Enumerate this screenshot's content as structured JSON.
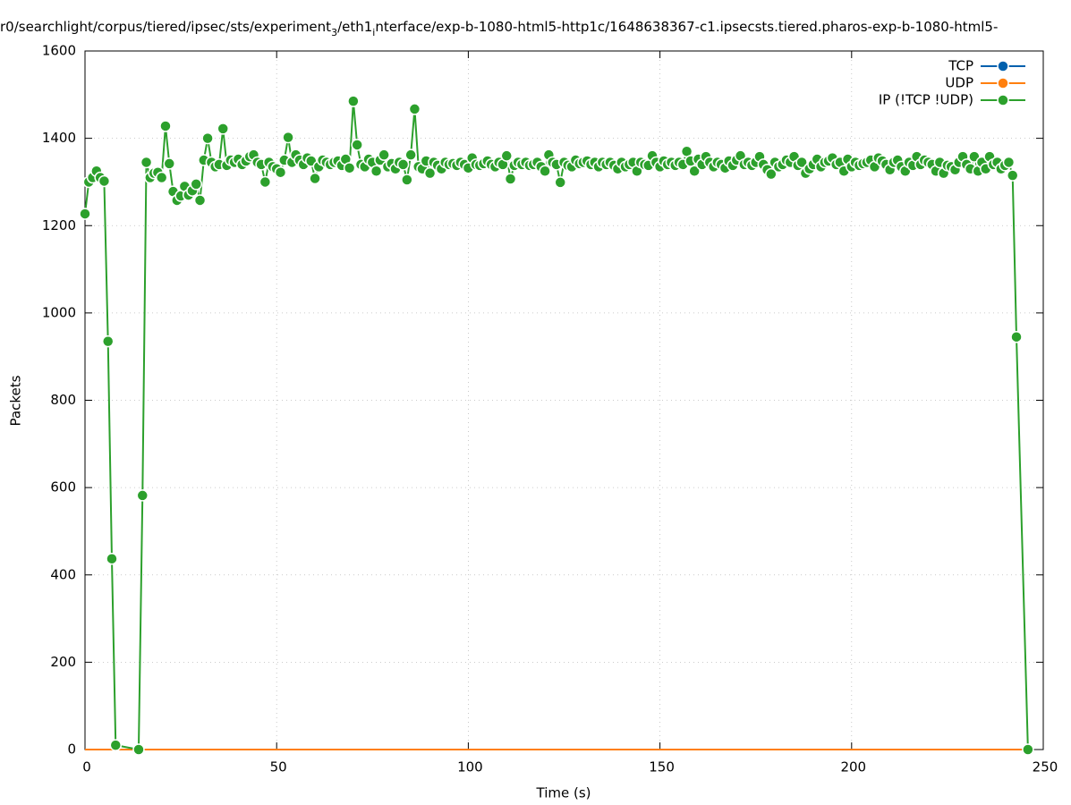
{
  "chart_data": {
    "type": "line",
    "title_segments": [
      "r0/searchlight/corpus/tiered/ipsec/sts/experiment",
      "3",
      "/eth1",
      "i",
      "nterface/exp-b-1080-html5-http1c/1648638367-c1.ipsecsts.tiered.pharos-exp-b-1080-html5-"
    ],
    "xlabel": "Time (s)",
    "ylabel": "Packets",
    "xlim": [
      0,
      250
    ],
    "xticks": [
      0,
      50,
      100,
      150,
      200,
      250
    ],
    "ylim": [
      0,
      1600
    ],
    "yticks": [
      0,
      200,
      400,
      600,
      800,
      1000,
      1200,
      1400,
      1600
    ],
    "grid": true,
    "legend": "top-right",
    "x": [
      0,
      1,
      2,
      3,
      4,
      5,
      6,
      7,
      8,
      14,
      15,
      16,
      17,
      18,
      19,
      20,
      21,
      22,
      23,
      24,
      25,
      26,
      27,
      28,
      29,
      30,
      31,
      32,
      33,
      34,
      35,
      36,
      37,
      38,
      39,
      40,
      41,
      42,
      43,
      44,
      45,
      46,
      47,
      48,
      49,
      50,
      51,
      52,
      53,
      54,
      55,
      56,
      57,
      58,
      59,
      60,
      61,
      62,
      63,
      64,
      65,
      66,
      67,
      68,
      69,
      70,
      71,
      72,
      73,
      74,
      75,
      76,
      77,
      78,
      79,
      80,
      81,
      82,
      83,
      84,
      85,
      86,
      87,
      88,
      89,
      90,
      91,
      92,
      93,
      94,
      95,
      96,
      97,
      98,
      99,
      100,
      101,
      102,
      103,
      104,
      105,
      106,
      107,
      108,
      109,
      110,
      111,
      112,
      113,
      114,
      115,
      116,
      117,
      118,
      119,
      120,
      121,
      122,
      123,
      124,
      125,
      126,
      127,
      128,
      129,
      130,
      131,
      132,
      133,
      134,
      135,
      136,
      137,
      138,
      139,
      140,
      141,
      142,
      143,
      144,
      145,
      146,
      147,
      148,
      149,
      150,
      151,
      152,
      153,
      154,
      155,
      156,
      157,
      158,
      159,
      160,
      161,
      162,
      163,
      164,
      165,
      166,
      167,
      168,
      169,
      170,
      171,
      172,
      173,
      174,
      175,
      176,
      177,
      178,
      179,
      180,
      181,
      182,
      183,
      184,
      185,
      186,
      187,
      188,
      189,
      190,
      191,
      192,
      193,
      194,
      195,
      196,
      197,
      198,
      199,
      200,
      201,
      202,
      203,
      204,
      205,
      206,
      207,
      208,
      209,
      210,
      211,
      212,
      213,
      214,
      215,
      216,
      217,
      218,
      219,
      220,
      221,
      222,
      223,
      224,
      225,
      226,
      227,
      228,
      229,
      230,
      231,
      232,
      233,
      234,
      235,
      236,
      237,
      238,
      239,
      240,
      241,
      242,
      243,
      246
    ],
    "series": [
      {
        "name": "TCP",
        "color": "#0060ad",
        "points": false,
        "values": [
          0,
          0,
          0,
          0,
          0,
          0,
          0,
          0,
          0,
          0,
          0,
          0,
          0,
          0,
          0,
          0,
          0,
          0,
          0,
          0,
          0,
          0,
          0,
          0,
          0,
          0,
          0,
          0,
          0,
          0,
          0,
          0,
          0,
          0,
          0,
          0,
          0,
          0,
          0,
          0,
          0,
          0,
          0,
          0,
          0,
          0,
          0,
          0,
          0,
          0,
          0,
          0,
          0,
          0,
          0,
          0,
          0,
          0,
          0,
          0,
          0,
          0,
          0,
          0,
          0,
          0,
          0,
          0,
          0,
          0,
          0,
          0,
          0,
          0,
          0,
          0,
          0,
          0,
          0,
          0,
          0,
          0,
          0,
          0,
          0,
          0,
          0,
          0,
          0,
          0,
          0,
          0,
          0,
          0,
          0,
          0,
          0,
          0,
          0,
          0,
          0,
          0,
          0,
          0,
          0,
          0,
          0,
          0,
          0,
          0,
          0,
          0,
          0,
          0,
          0,
          0,
          0,
          0,
          0,
          0,
          0,
          0,
          0,
          0,
          0,
          0,
          0,
          0,
          0,
          0,
          0,
          0,
          0,
          0,
          0,
          0,
          0,
          0,
          0,
          0,
          0,
          0,
          0,
          0,
          0,
          0,
          0,
          0,
          0,
          0,
          0,
          0,
          0,
          0,
          0,
          0,
          0,
          0,
          0,
          0,
          0,
          0,
          0,
          0,
          0,
          0,
          0,
          0,
          0,
          0,
          0,
          0,
          0,
          0,
          0,
          0,
          0,
          0,
          0,
          0,
          0,
          0,
          0,
          0,
          0,
          0,
          0,
          0,
          0,
          0,
          0,
          0,
          0,
          0,
          0,
          0,
          0,
          0,
          0,
          0,
          0,
          0,
          0,
          0,
          0,
          0,
          0,
          0,
          0,
          0,
          0,
          0,
          0,
          0,
          0,
          0,
          0,
          0,
          0,
          0,
          0,
          0,
          0,
          0,
          0,
          0,
          0,
          0,
          0,
          0,
          0,
          0,
          0,
          0,
          0,
          0,
          0,
          0,
          0,
          0
        ]
      },
      {
        "name": "UDP",
        "color": "#ff7f0e",
        "points": false,
        "values": [
          0,
          0,
          0,
          0,
          0,
          0,
          0,
          0,
          0,
          0,
          0,
          0,
          0,
          0,
          0,
          0,
          0,
          0,
          0,
          0,
          0,
          0,
          0,
          0,
          0,
          0,
          0,
          0,
          0,
          0,
          0,
          0,
          0,
          0,
          0,
          0,
          0,
          0,
          0,
          0,
          0,
          0,
          0,
          0,
          0,
          0,
          0,
          0,
          0,
          0,
          0,
          0,
          0,
          0,
          0,
          0,
          0,
          0,
          0,
          0,
          0,
          0,
          0,
          0,
          0,
          0,
          0,
          0,
          0,
          0,
          0,
          0,
          0,
          0,
          0,
          0,
          0,
          0,
          0,
          0,
          0,
          0,
          0,
          0,
          0,
          0,
          0,
          0,
          0,
          0,
          0,
          0,
          0,
          0,
          0,
          0,
          0,
          0,
          0,
          0,
          0,
          0,
          0,
          0,
          0,
          0,
          0,
          0,
          0,
          0,
          0,
          0,
          0,
          0,
          0,
          0,
          0,
          0,
          0,
          0,
          0,
          0,
          0,
          0,
          0,
          0,
          0,
          0,
          0,
          0,
          0,
          0,
          0,
          0,
          0,
          0,
          0,
          0,
          0,
          0,
          0,
          0,
          0,
          0,
          0,
          0,
          0,
          0,
          0,
          0,
          0,
          0,
          0,
          0,
          0,
          0,
          0,
          0,
          0,
          0,
          0,
          0,
          0,
          0,
          0,
          0,
          0,
          0,
          0,
          0,
          0,
          0,
          0,
          0,
          0,
          0,
          0,
          0,
          0,
          0,
          0,
          0,
          0,
          0,
          0,
          0,
          0,
          0,
          0,
          0,
          0,
          0,
          0,
          0,
          0,
          0,
          0,
          0,
          0,
          0,
          0,
          0,
          0,
          0,
          0,
          0,
          0,
          0,
          0,
          0,
          0,
          0,
          0,
          0,
          0,
          0,
          0,
          0,
          0,
          0,
          0,
          0,
          0,
          0,
          0,
          0,
          0,
          0,
          0,
          0,
          0,
          0,
          0,
          0,
          0,
          0,
          0,
          0,
          0,
          0
        ]
      },
      {
        "name": "IP (!TCP  !UDP)",
        "color": "#2ca02c",
        "points": true,
        "values": [
          1227,
          1300,
          1310,
          1325,
          1310,
          1302,
          935,
          437,
          10,
          0,
          582,
          1345,
          1310,
          1320,
          1322,
          1310,
          1428,
          1342,
          1278,
          1258,
          1268,
          1290,
          1270,
          1280,
          1295,
          1258,
          1350,
          1400,
          1345,
          1335,
          1340,
          1422,
          1338,
          1350,
          1345,
          1352,
          1340,
          1348,
          1358,
          1362,
          1345,
          1340,
          1300,
          1345,
          1335,
          1330,
          1322,
          1350,
          1402,
          1345,
          1362,
          1350,
          1340,
          1355,
          1348,
          1308,
          1335,
          1350,
          1345,
          1340,
          1345,
          1348,
          1338,
          1352,
          1332,
          1485,
          1385,
          1340,
          1335,
          1352,
          1345,
          1325,
          1350,
          1362,
          1335,
          1342,
          1330,
          1345,
          1340,
          1305,
          1362,
          1467,
          1335,
          1330,
          1348,
          1320,
          1345,
          1338,
          1330,
          1345,
          1340,
          1342,
          1338,
          1345,
          1340,
          1332,
          1355,
          1340,
          1338,
          1342,
          1348,
          1340,
          1335,
          1345,
          1340,
          1360,
          1307,
          1338,
          1345,
          1340,
          1345,
          1338,
          1340,
          1345,
          1335,
          1325,
          1362,
          1345,
          1340,
          1299,
          1345,
          1338,
          1335,
          1350,
          1342,
          1345,
          1348,
          1340,
          1345,
          1335,
          1345,
          1340,
          1345,
          1338,
          1330,
          1345,
          1335,
          1340,
          1345,
          1325,
          1345,
          1340,
          1338,
          1360,
          1345,
          1335,
          1348,
          1340,
          1345,
          1338,
          1345,
          1340,
          1370,
          1348,
          1325,
          1352,
          1340,
          1358,
          1345,
          1335,
          1345,
          1340,
          1332,
          1348,
          1338,
          1350,
          1360,
          1340,
          1345,
          1338,
          1345,
          1358,
          1340,
          1328,
          1318,
          1345,
          1335,
          1340,
          1350,
          1345,
          1358,
          1338,
          1345,
          1320,
          1330,
          1340,
          1352,
          1335,
          1345,
          1348,
          1355,
          1340,
          1345,
          1325,
          1352,
          1335,
          1345,
          1338,
          1342,
          1345,
          1350,
          1335,
          1355,
          1348,
          1340,
          1328,
          1345,
          1350,
          1335,
          1325,
          1345,
          1338,
          1358,
          1340,
          1350,
          1345,
          1340,
          1325,
          1345,
          1320,
          1338,
          1335,
          1328,
          1345,
          1358,
          1340,
          1330,
          1358,
          1325,
          1345,
          1330,
          1358,
          1340,
          1345,
          1330,
          1338,
          1345,
          1315,
          945,
          0
        ]
      }
    ]
  }
}
